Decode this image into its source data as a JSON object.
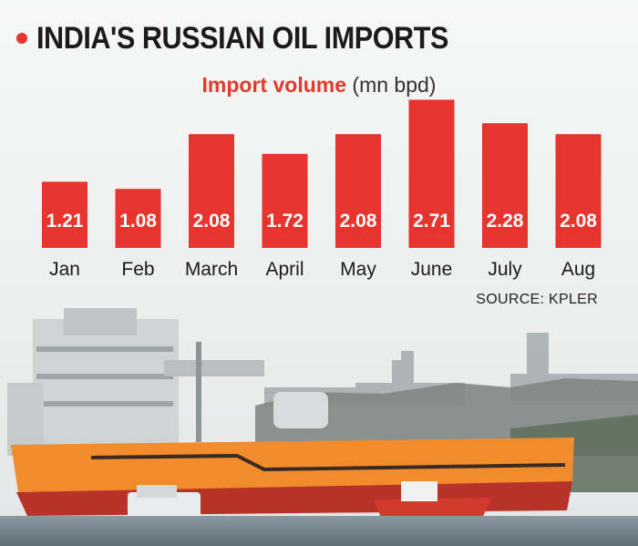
{
  "title": "INDIA'S RUSSIAN OIL IMPORTS",
  "subtitle": "Import volume",
  "unit": "(mn bpd)",
  "source": "SOURCE: KPLER",
  "colors": {
    "bar": "#e8342e",
    "title_bullet": "#e8342e",
    "subtitle": "#e33a2c",
    "ship_hull_orange": "#f08c2c",
    "ship_hull_dark": "#b7332a",
    "sky": "#eef0f0"
  },
  "chart_data": {
    "type": "bar",
    "title": "INDIA'S RUSSIAN OIL IMPORTS",
    "subtitle": "Import volume (mn bpd)",
    "categories": [
      "Jan",
      "Feb",
      "March",
      "April",
      "May",
      "June",
      "July",
      "Aug"
    ],
    "values": [
      1.21,
      1.08,
      2.08,
      1.72,
      2.08,
      2.71,
      2.28,
      2.08
    ],
    "value_labels": [
      "1.21",
      "1.08",
      "2.08",
      "1.72",
      "2.08",
      "2.71",
      "2.28",
      "2.08"
    ],
    "ylim": [
      0,
      2.75
    ],
    "grid": false,
    "legend": "none",
    "source": "SOURCE: KPLER"
  }
}
